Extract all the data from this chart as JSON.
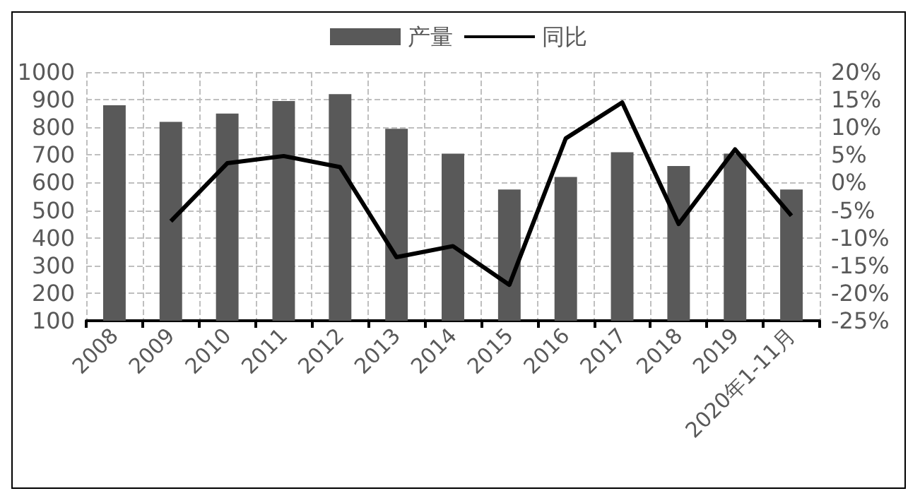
{
  "chart_data": {
    "type": "bar",
    "categories": [
      "2008",
      "2009",
      "2010",
      "2011",
      "2012",
      "2013",
      "2014",
      "2015",
      "2016",
      "2017",
      "2018",
      "2019",
      "2020年1-11月"
    ],
    "series": [
      {
        "name": "产量",
        "color": "#595959",
        "values": [
          880,
          820,
          850,
          895,
          920,
          795,
          705,
          575,
          620,
          710,
          660,
          705,
          575
        ]
      },
      {
        "name": "同比",
        "type": "line",
        "axis": "y2",
        "color": "#000000",
        "marker": "none",
        "values": [
          null,
          -7,
          3.5,
          4.8,
          2.8,
          -13.5,
          -11.5,
          -18.5,
          8,
          14.5,
          -7.5,
          6,
          -6
        ]
      }
    ],
    "ylim": [
      100,
      1000
    ],
    "yticks": [
      100,
      200,
      300,
      400,
      500,
      600,
      700,
      800,
      900,
      1000
    ],
    "y2lim": [
      -25,
      20
    ],
    "y2ticks": [
      {
        "value": -25,
        "label": "-25%"
      },
      {
        "value": -20,
        "label": "-20%"
      },
      {
        "value": -15,
        "label": "-15%"
      },
      {
        "value": -10,
        "label": "-10%"
      },
      {
        "value": -5,
        "label": "-5%"
      },
      {
        "value": 0,
        "label": "0%"
      },
      {
        "value": 5,
        "label": "5%"
      },
      {
        "value": 10,
        "label": "10%"
      },
      {
        "value": 15,
        "label": "15%"
      },
      {
        "value": 20,
        "label": "20%"
      }
    ],
    "grid": true,
    "legend": "top"
  }
}
